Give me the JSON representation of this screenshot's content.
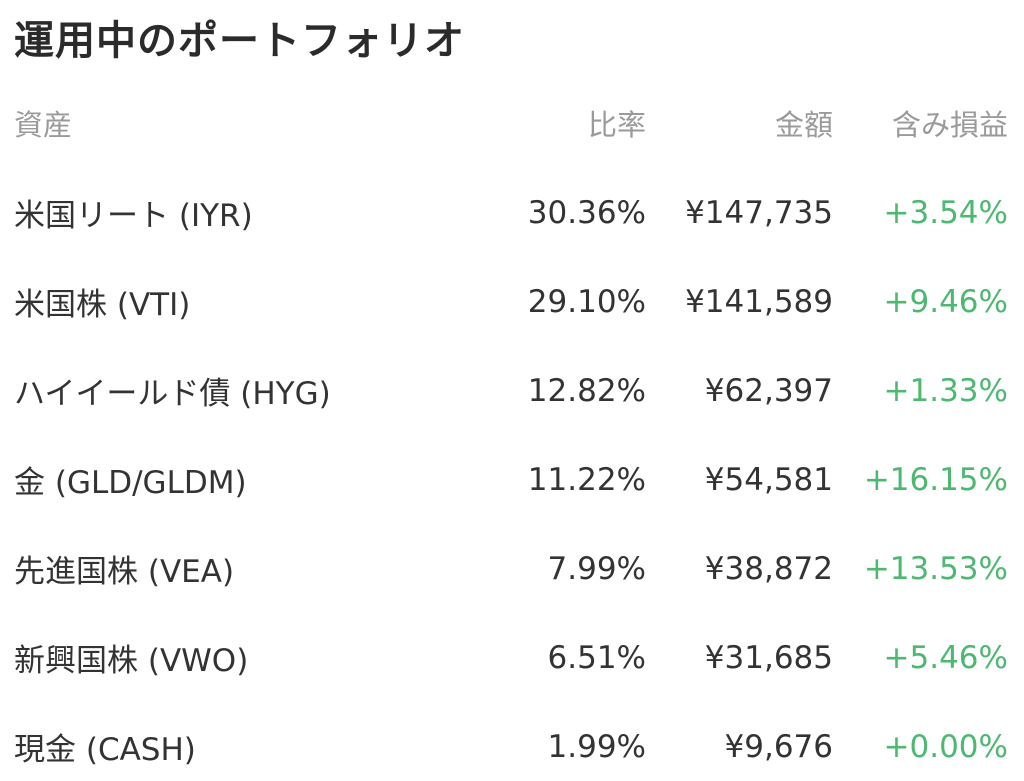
{
  "page_title": "運用中のポートフォリオ",
  "colors": {
    "text": "#333333",
    "header_text": "#9a9a9a",
    "positive": "#4cb870"
  },
  "table": {
    "columns": [
      "資産",
      "比率",
      "金額",
      "含み損益"
    ],
    "rows": [
      {
        "asset": "米国リート (IYR)",
        "ratio": "30.36%",
        "amount": "¥147,735",
        "pl": "+3.54%"
      },
      {
        "asset": "米国株 (VTI)",
        "ratio": "29.10%",
        "amount": "¥141,589",
        "pl": "+9.46%"
      },
      {
        "asset": "ハイイールド債 (HYG)",
        "ratio": "12.82%",
        "amount": "¥62,397",
        "pl": "+1.33%"
      },
      {
        "asset": "金 (GLD/GLDM)",
        "ratio": "11.22%",
        "amount": "¥54,581",
        "pl": "+16.15%"
      },
      {
        "asset": "先進国株 (VEA)",
        "ratio": "7.99%",
        "amount": "¥38,872",
        "pl": "+13.53%"
      },
      {
        "asset": "新興国株 (VWO)",
        "ratio": "6.51%",
        "amount": "¥31,685",
        "pl": "+5.46%"
      },
      {
        "asset": "現金 (CASH)",
        "ratio": "1.99%",
        "amount": "¥9,676",
        "pl": "+0.00%"
      }
    ]
  }
}
